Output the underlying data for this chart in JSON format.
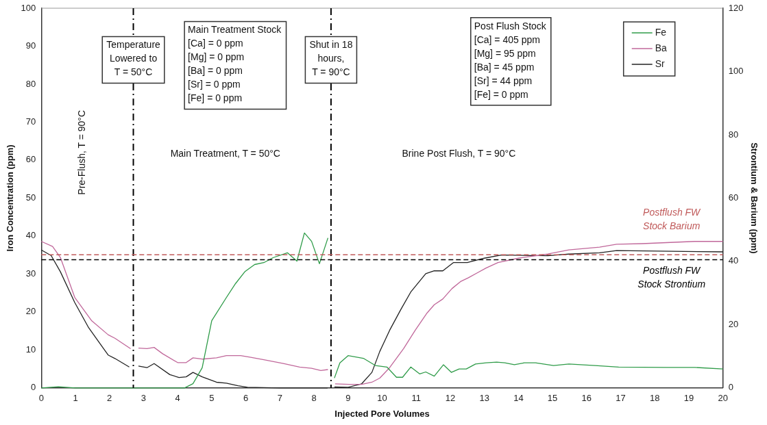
{
  "chart_data": {
    "type": "line",
    "xlabel": "Injected Pore Volumes",
    "ylabel": "Iron Concentration (ppm)",
    "y2label": "Strontium & Barium (ppm)",
    "xlim": [
      0,
      20
    ],
    "xticks": [
      0,
      1,
      2,
      3,
      4,
      5,
      6,
      7,
      8,
      9,
      10,
      11,
      12,
      13,
      14,
      15,
      16,
      17,
      18,
      19,
      20
    ],
    "ylim": [
      0,
      100
    ],
    "yticks": [
      0,
      10,
      20,
      30,
      40,
      50,
      60,
      70,
      80,
      90,
      100
    ],
    "y2lim": [
      0,
      120
    ],
    "y2ticks": [
      0,
      20,
      40,
      60,
      80,
      100,
      120
    ],
    "grid": false,
    "legend": "top right",
    "marker": "none",
    "series": [
      {
        "name": "Fe",
        "color": "#2e9b48",
        "axis": "y",
        "x": [
          0,
          0.5,
          1,
          2,
          2.7,
          3.5,
          4.2,
          4.45,
          4.72,
          5.0,
          5.43,
          5.7,
          5.97,
          6.26,
          6.53,
          6.8,
          7.22,
          7.5,
          7.72,
          7.93,
          8.16,
          8.41,
          8.5,
          8.6,
          8.76,
          9.0,
          9.45,
          9.8,
          10.14,
          10.42,
          10.6,
          10.84,
          11.1,
          11.28,
          11.53,
          11.8,
          12.03,
          12.26,
          12.47,
          12.74,
          13.05,
          13.36,
          13.6,
          13.88,
          14.17,
          14.5,
          15.03,
          15.48,
          16.25,
          16.94,
          18.33,
          19.17,
          20
        ],
        "values": [
          0,
          0.3,
          0,
          0,
          0,
          0,
          0,
          1.1,
          5.3,
          17.7,
          23.8,
          27.5,
          30.6,
          32.5,
          33,
          34.3,
          35.6,
          33.4,
          40.8,
          38.6,
          32.7,
          39.5,
          null,
          2.6,
          6.6,
          8.5,
          7.8,
          5.9,
          5.5,
          2.8,
          2.8,
          5.5,
          3.7,
          4.2,
          3.1,
          6.1,
          4.1,
          5,
          5,
          6.3,
          6.6,
          6.8,
          6.6,
          6.1,
          6.6,
          6.6,
          5.9,
          6.3,
          5.9,
          5.5,
          5.4,
          5.4,
          5
        ]
      },
      {
        "name": "Ba",
        "color": "#c0679a",
        "axis": "y2",
        "x": [
          0,
          0.33,
          0.56,
          0.98,
          1.48,
          1.96,
          2.16,
          2.62,
          2.7,
          2.85,
          3.1,
          3.31,
          3.56,
          4.0,
          4.25,
          4.45,
          4.72,
          5.14,
          5.43,
          5.85,
          6.12,
          6.53,
          7.1,
          7.58,
          7.93,
          8.2,
          8.41,
          8.5,
          8.62,
          9.03,
          9.4,
          9.7,
          9.93,
          10.22,
          10.63,
          10.97,
          11.32,
          11.53,
          11.78,
          12.05,
          12.3,
          12.53,
          12.78,
          13.05,
          13.4,
          14.0,
          14.86,
          15.48,
          16.38,
          16.88,
          17.63,
          19.17,
          20
        ],
        "values": [
          46.3,
          44.7,
          41.2,
          28.6,
          21.2,
          16.8,
          15.7,
          12.4,
          null,
          12.6,
          12.4,
          12.8,
          10.8,
          8,
          8,
          9.5,
          9.1,
          9.5,
          10.2,
          10.2,
          9.7,
          8.9,
          7.7,
          6.6,
          6.2,
          5.5,
          5.8,
          null,
          1.3,
          1.1,
          1.1,
          1.8,
          3.1,
          6.4,
          12.4,
          18.2,
          23.7,
          26.3,
          28.1,
          31.4,
          33.6,
          34.8,
          36.3,
          37.9,
          39.6,
          41,
          42.3,
          43.6,
          44.5,
          45.4,
          45.6,
          46.3,
          46.3
        ]
      },
      {
        "name": "Sr",
        "color": "#222222",
        "axis": "y2",
        "x": [
          0,
          0.29,
          0.56,
          0.98,
          1.39,
          1.96,
          2.16,
          2.58,
          2.7,
          2.85,
          3.1,
          3.31,
          3.77,
          4.04,
          4.25,
          4.45,
          4.72,
          5.14,
          5.43,
          5.77,
          6.05,
          7,
          8.4,
          8.5,
          8.6,
          9.0,
          9.4,
          9.7,
          9.93,
          10.22,
          10.55,
          10.84,
          11.28,
          11.53,
          11.78,
          12.09,
          12.5,
          13.0,
          13.5,
          14.86,
          15.48,
          16.38,
          16.88,
          20
        ],
        "values": [
          43.6,
          41.8,
          36.7,
          27,
          19,
          10.4,
          9.3,
          6.6,
          null,
          6.9,
          6.4,
          7.7,
          4.2,
          3.3,
          3.5,
          4.9,
          3.5,
          1.8,
          1.5,
          0.7,
          0.2,
          0,
          0,
          null,
          0.3,
          0.2,
          1.3,
          4.9,
          11.5,
          18.2,
          24.8,
          30.3,
          36.1,
          37,
          37,
          39.6,
          39.6,
          41,
          42,
          41.8,
          42.3,
          42.7,
          43.4,
          43
        ]
      }
    ],
    "ref_lines": [
      {
        "axis": "x",
        "value": 2.7,
        "color": "#000000",
        "line_style": "dashed"
      },
      {
        "axis": "x",
        "value": 8.5,
        "color": "#000000",
        "line_style": "dashed"
      },
      {
        "axis": "y2",
        "value": 42.1,
        "label": "Postflush FW\nStock Barium",
        "color": "#c05a5a",
        "line_style": "dashed"
      },
      {
        "axis": "y2",
        "value": 40.5,
        "label": "Postflush FW\nStock Strontium",
        "color": "#000000",
        "line_style": "dashed"
      }
    ],
    "annotations": [
      "Pre-Flush, T = 90°C",
      "Main Treatment, T = 50°C",
      "Brine Post Flush, T = 90°C",
      "Main Treatment Stock\n[Ca] = 0 ppm\n[Mg] = 0 ppm\n[Ba] = 0 ppm\n[Sr] = 0 ppm\n[Fe] = 0 ppm",
      "Post Flush Stock\n[Ca] = 405 ppm\n[Mg] = 95 ppm\n[Ba] = 45 ppm\n[Sr] = 44 ppm\n[Fe] = 0 ppm",
      "Temperature\nLowered to\nT = 50°C",
      "Shut in 18\nhours,\nT = 90°C"
    ]
  }
}
